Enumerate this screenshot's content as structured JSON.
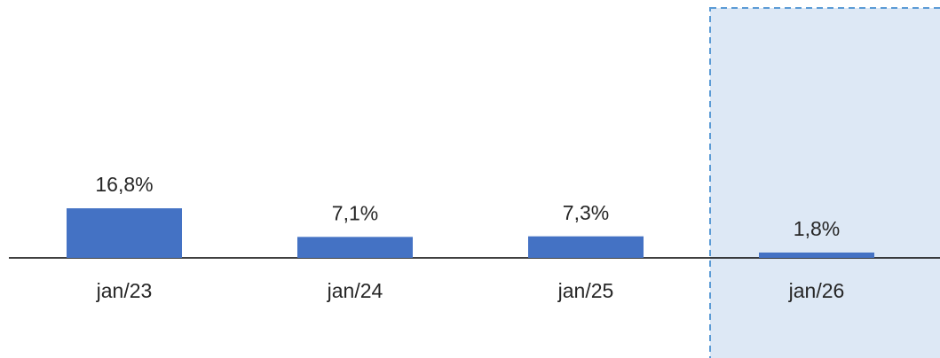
{
  "chart_data": {
    "type": "bar",
    "categories": [
      "jan/23",
      "jan/24",
      "jan/25",
      "jan/26"
    ],
    "values": [
      16.8,
      7.1,
      7.3,
      1.8
    ],
    "value_labels": [
      "16,8%",
      "7,1%",
      "7,3%",
      "1,8%"
    ],
    "color": "#4472c4"
  }
}
